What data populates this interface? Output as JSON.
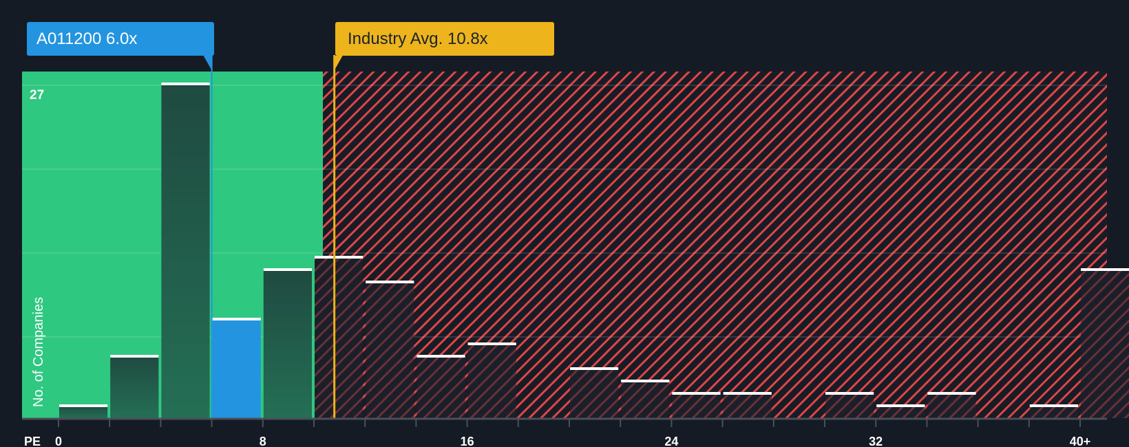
{
  "company_label": "A011200 6.0x",
  "industry_label": "Industry Avg. 10.8x",
  "y_axis_label": "No. of Companies",
  "y_max_label": "27",
  "x_axis_prefix": "PE",
  "colors": {
    "background": "#151b24",
    "undervalued_zone": "#2ec880",
    "overvalued_hatch": "#e0454a",
    "company": "#2394e0",
    "industry": "#edb41b",
    "bar_dark": "#1f4a40",
    "bar_cap": "#ffffff"
  },
  "chart_data": {
    "type": "bar",
    "title": "",
    "xlabel": "PE",
    "ylabel": "No. of Companies",
    "categories": [
      "0-2",
      "2-4",
      "4-6",
      "6-8",
      "8-10",
      "10-12",
      "12-14",
      "14-16",
      "16-18",
      "18-20",
      "20-22",
      "22-24",
      "24-26",
      "26-28",
      "28-30",
      "30-32",
      "32-34",
      "34-36",
      "36-38",
      "38-40",
      "40+"
    ],
    "values": [
      1,
      5,
      27,
      8,
      12,
      13,
      11,
      5,
      6,
      0,
      4,
      3,
      2,
      2,
      0,
      2,
      1,
      2,
      0,
      1,
      12
    ],
    "x_ticks": [
      "0",
      "8",
      "16",
      "24",
      "32",
      "40+"
    ],
    "ylim": [
      0,
      28
    ],
    "y_ticks_visible": [
      "27"
    ],
    "highlight": {
      "company": "A011200",
      "pe": 6.0,
      "bin_index": 3
    },
    "industry_avg": 10.8,
    "grid": true,
    "legend": "none"
  }
}
